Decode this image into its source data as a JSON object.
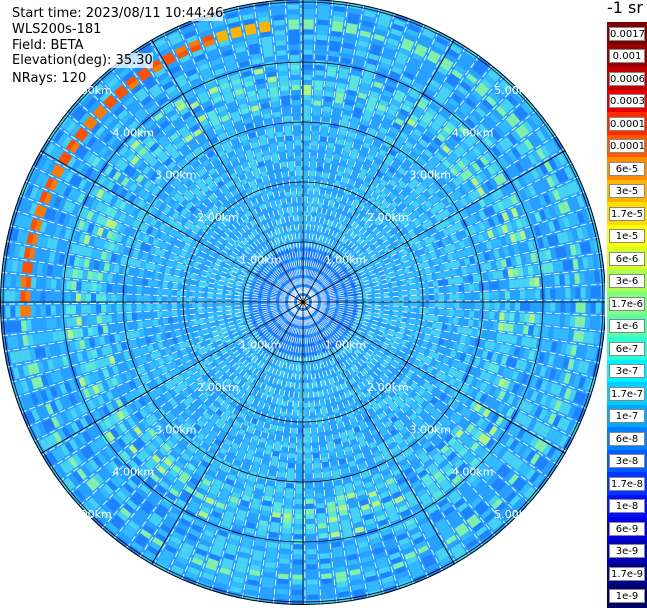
{
  "header": {
    "start_time": "Start time: 2023/08/11 10:44:46",
    "device": "WLS200s-181",
    "field": "Field: BETA",
    "elevation": "Elevation(deg): 35.30",
    "nrays": "NRays: 120"
  },
  "legend": {
    "title": "-1 sr",
    "ticks": [
      "0.0017",
      "0.001",
      "0.0006",
      "0.0003",
      "0.00017",
      "0.0001",
      "6e-5",
      "3e-5",
      "1.7e-5",
      "1e-5",
      "6e-6",
      "3e-6",
      "1.7e-6",
      "1e-6",
      "6e-7",
      "3e-7",
      "1.7e-7",
      "1e-7",
      "6e-8",
      "3e-8",
      "1.7e-8",
      "1e-8",
      "6e-9",
      "3e-9",
      "1.7e-9",
      "1e-9"
    ],
    "colors": [
      "#7f0000",
      "#9a0000",
      "#c00000",
      "#e80000",
      "#ff2a00",
      "#ff5a00",
      "#ff8c00",
      "#ffb400",
      "#ffdc00",
      "#ffff00",
      "#d4ff2a",
      "#aaff55",
      "#7fff7f",
      "#55ffaa",
      "#2affd4",
      "#00f0ff",
      "#00cfff",
      "#00a8ff",
      "#0080ff",
      "#005cff",
      "#0036ff",
      "#0010ff",
      "#0000e0",
      "#0000b8",
      "#000090",
      "#000068"
    ]
  },
  "chart_data": {
    "type": "heatmap",
    "projection": "polar (PPI scan)",
    "field": "BETA",
    "n_rays": 120,
    "elevation_deg": 35.3,
    "range_rings_km": [
      1,
      2,
      3,
      4,
      5
    ],
    "ring_labels": [
      "1.00km",
      "2.00km",
      "3.00km",
      "4.00km",
      "5.00km"
    ],
    "scale": "log",
    "value_range": [
      1e-09,
      0.0017
    ],
    "features": [
      {
        "description": "ring of high backscatter",
        "range_km": 4.6,
        "value": 0.0001
      }
    ]
  }
}
